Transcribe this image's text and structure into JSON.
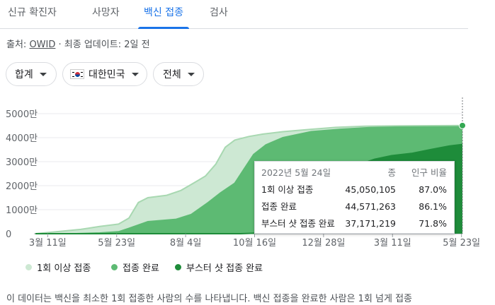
{
  "tabs": [
    {
      "label": "신규 확진자",
      "active": false
    },
    {
      "label": "사망자",
      "active": false
    },
    {
      "label": "백신 접종",
      "active": true
    },
    {
      "label": "검사",
      "active": false
    }
  ],
  "source": {
    "prefix": "출처:",
    "link": "OWID",
    "update": "· 최종 업데이트: 2일 전"
  },
  "filters": {
    "metric": "합계",
    "region": "대한민국",
    "population": "전체"
  },
  "tooltip": {
    "date": "2022년 5월 24일",
    "col_total": "종",
    "col_pct": "인구 비율",
    "rows": [
      {
        "label": "1회 이상 접종",
        "total": "45,050,105",
        "pct": "87.0%"
      },
      {
        "label": "접종 완료",
        "total": "44,571,263",
        "pct": "86.1%"
      },
      {
        "label": "부스터 샷 접종 완료",
        "total": "37,171,219",
        "pct": "71.8%"
      }
    ]
  },
  "legend": [
    {
      "label": "1회 이상 접종",
      "color": "#cde8d3"
    },
    {
      "label": "접종 완료",
      "color": "#5dba73"
    },
    {
      "label": "부스터 샷 접종 완료",
      "color": "#1e8c3a"
    }
  ],
  "description": "이 데이터는 백신을 최소한 1회 접종한 사람의 수를 나타냅니다. 백신 접종을 완료한 사람은 1회 넘게 접종",
  "chart_data": {
    "type": "area",
    "yunit": "만",
    "ylim": [
      0,
      5000
    ],
    "yticks": [
      0,
      1000,
      2000,
      3000,
      4000,
      5000
    ],
    "ytick_labels": [
      "0",
      "1000만",
      "2000만",
      "3000만",
      "4000만",
      "5000만"
    ],
    "x_domain": [
      "2021-02-26",
      "2022-05-24"
    ],
    "xticks": [
      "2021-03-11",
      "2021-05-23",
      "2021-08-04",
      "2021-10-16",
      "2021-12-28",
      "2022-03-11",
      "2022-05-23"
    ],
    "xtick_labels": [
      "3월 11일",
      "5월 23일",
      "8월 4일",
      "10월 16일",
      "12월 28일",
      "3월 11일",
      "5월 23일"
    ],
    "grid": true,
    "series": [
      {
        "name": "1회 이상 접종",
        "color": "#cde8d3",
        "stroke": "#a8d8b1",
        "points": [
          [
            "2021-02-26",
            0
          ],
          [
            "2021-03-20",
            80
          ],
          [
            "2021-04-15",
            180
          ],
          [
            "2021-05-05",
            300
          ],
          [
            "2021-05-25",
            400
          ],
          [
            "2021-06-05",
            650
          ],
          [
            "2021-06-15",
            1300
          ],
          [
            "2021-06-25",
            1500
          ],
          [
            "2021-07-15",
            1600
          ],
          [
            "2021-07-30",
            1800
          ],
          [
            "2021-08-10",
            2050
          ],
          [
            "2021-08-25",
            2400
          ],
          [
            "2021-09-05",
            2900
          ],
          [
            "2021-09-15",
            3600
          ],
          [
            "2021-09-25",
            3900
          ],
          [
            "2021-10-10",
            4050
          ],
          [
            "2021-10-25",
            4150
          ],
          [
            "2021-11-15",
            4250
          ],
          [
            "2021-12-15",
            4350
          ],
          [
            "2022-01-10",
            4430
          ],
          [
            "2022-02-10",
            4480
          ],
          [
            "2022-03-15",
            4495
          ],
          [
            "2022-05-24",
            4505
          ]
        ]
      },
      {
        "name": "접종 완료",
        "color": "#5dba73",
        "stroke": "#5dba73",
        "points": [
          [
            "2021-02-26",
            0
          ],
          [
            "2021-04-10",
            0
          ],
          [
            "2021-05-05",
            30
          ],
          [
            "2021-05-25",
            80
          ],
          [
            "2021-06-05",
            220
          ],
          [
            "2021-06-25",
            500
          ],
          [
            "2021-07-25",
            600
          ],
          [
            "2021-08-10",
            800
          ],
          [
            "2021-08-28",
            1300
          ],
          [
            "2021-09-10",
            1700
          ],
          [
            "2021-09-25",
            2100
          ],
          [
            "2021-10-05",
            2700
          ],
          [
            "2021-10-15",
            3300
          ],
          [
            "2021-10-28",
            3700
          ],
          [
            "2021-11-15",
            4000
          ],
          [
            "2021-12-15",
            4250
          ],
          [
            "2022-01-15",
            4350
          ],
          [
            "2022-02-15",
            4420
          ],
          [
            "2022-03-15",
            4440
          ],
          [
            "2022-05-24",
            4457
          ]
        ]
      },
      {
        "name": "부스터 샷 접종 완료",
        "color": "#1e8c3a",
        "stroke": "#1e8c3a",
        "points": [
          [
            "2021-02-26",
            0
          ],
          [
            "2021-10-01",
            0
          ],
          [
            "2021-11-01",
            40
          ],
          [
            "2021-12-01",
            400
          ],
          [
            "2021-12-20",
            1600
          ],
          [
            "2022-01-05",
            2000
          ],
          [
            "2022-01-20",
            2500
          ],
          [
            "2022-02-05",
            2900
          ],
          [
            "2022-02-20",
            3100
          ],
          [
            "2022-03-10",
            3250
          ],
          [
            "2022-04-01",
            3350
          ],
          [
            "2022-04-20",
            3500
          ],
          [
            "2022-05-10",
            3650
          ],
          [
            "2022-05-24",
            3717
          ]
        ]
      }
    ]
  }
}
